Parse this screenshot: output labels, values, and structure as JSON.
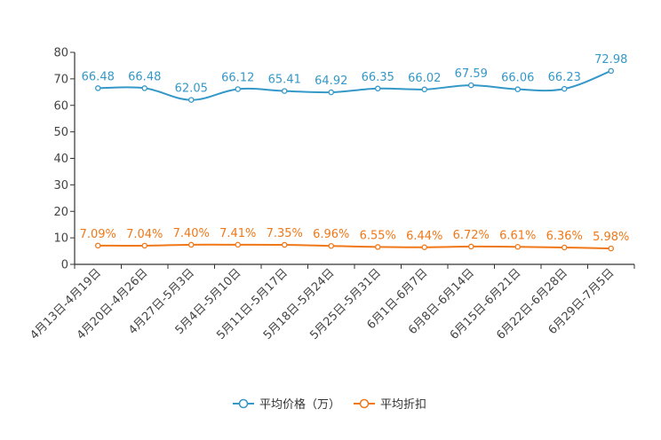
{
  "chart_data": {
    "type": "line",
    "categories": [
      "4月13日-4月19日",
      "4月20日-4月26日",
      "4月27日-5月3日",
      "5月4日-5月10日",
      "5月11日-5月17日",
      "5月18日-5月24日",
      "5月25日-5月31日",
      "6月1日-6月7日",
      "6月8日-6月14日",
      "6月15日-6月21日",
      "6月22日-6月28日",
      "6月29日-7月5日"
    ],
    "series": [
      {
        "name": "平均价格（万）",
        "color": "#3498c8",
        "values": [
          66.48,
          66.48,
          62.05,
          66.12,
          65.41,
          64.92,
          66.35,
          66.02,
          67.59,
          66.06,
          66.23,
          72.98
        ],
        "labels": [
          "66.48",
          "66.48",
          "62.05",
          "66.12",
          "65.41",
          "64.92",
          "66.35",
          "66.02",
          "67.59",
          "66.06",
          "66.23",
          "72.98"
        ]
      },
      {
        "name": "平均折扣",
        "color": "#f07818",
        "values": [
          7.09,
          7.04,
          7.4,
          7.41,
          7.35,
          6.96,
          6.55,
          6.44,
          6.72,
          6.61,
          6.36,
          5.98
        ],
        "labels": [
          "7.09%",
          "7.04%",
          "7.40%",
          "7.41%",
          "7.35%",
          "6.96%",
          "6.55%",
          "6.44%",
          "6.72%",
          "6.61%",
          "6.36%",
          "5.98%"
        ]
      }
    ],
    "ylim": [
      0,
      80
    ],
    "yticks": [
      "0",
      "10",
      "20",
      "30",
      "40",
      "50",
      "60",
      "70",
      "80"
    ],
    "legend_position": "bottom-center",
    "grid": false
  }
}
